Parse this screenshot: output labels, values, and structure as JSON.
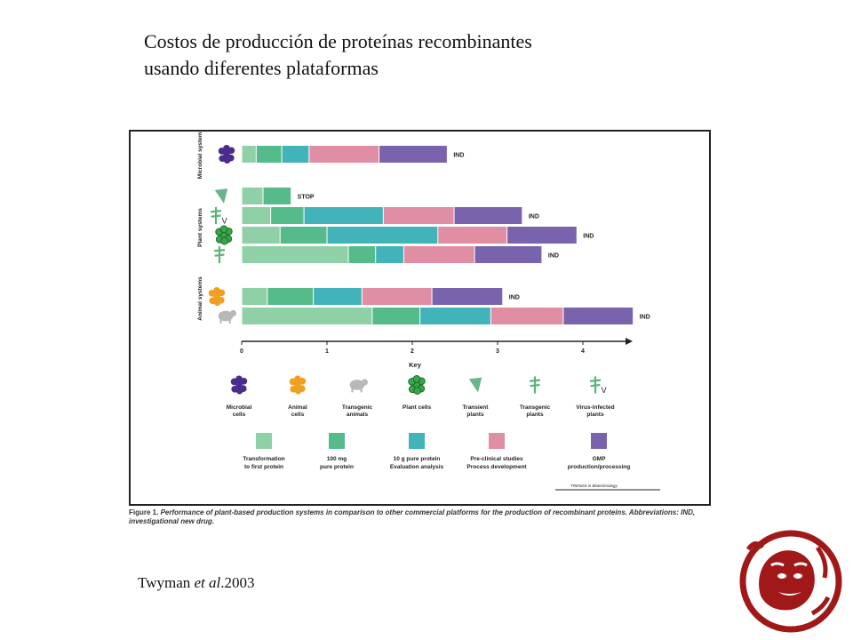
{
  "slide": {
    "title_line1": "Costos de producción de proteínas recombinantes",
    "title_line2": "usando diferentes plataformas",
    "citation_author": "Twyman ",
    "citation_etal": "et al",
    "citation_year": ".2003"
  },
  "figure": {
    "caption_label": "Figure 1.",
    "caption_text": "Performance of plant-based production systems in comparison to other commercial platforms for the production of recombinant proteins. Abbreviations: IND, investigational new drug.",
    "journal_credit": "TRENDS in Biotechnology"
  },
  "chart_data": {
    "type": "bar",
    "orientation": "horizontal-stacked",
    "xlabel": "Key",
    "xlim": [
      0,
      4.5
    ],
    "xticks": [
      "0",
      "1",
      "2",
      "3",
      "4"
    ],
    "groups": [
      {
        "label": "Microbial systems",
        "rows": [
          0
        ]
      },
      {
        "label": "Plant systems",
        "rows": [
          1,
          2,
          3,
          4
        ]
      },
      {
        "label": "Animal systems",
        "rows": [
          5,
          6
        ]
      }
    ],
    "stage_colors": [
      "#8fd0a7",
      "#55bb8b",
      "#42b3b8",
      "#e08ea3",
      "#7a63ad"
    ],
    "rows": [
      {
        "system": "Microbial cells",
        "icon": "microbial",
        "segments": [
          0.17,
          0.3,
          0.32,
          0.82,
          0.8
        ],
        "end_label": "IND"
      },
      {
        "system": "Transient plants",
        "icon": "transient",
        "segments": [
          0.25,
          0.33
        ],
        "end_label": "STOP"
      },
      {
        "system": "Virus-infected plants",
        "icon": "virus",
        "segments": [
          0.34,
          0.39,
          0.93,
          0.83,
          0.8
        ],
        "end_label": "IND"
      },
      {
        "system": "Plant cells",
        "icon": "plantcell",
        "segments": [
          0.45,
          0.55,
          1.3,
          0.81,
          0.82
        ],
        "end_label": "IND"
      },
      {
        "system": "Transgenic plants",
        "icon": "transgenic",
        "segments": [
          1.25,
          0.32,
          0.33,
          0.83,
          0.79
        ],
        "end_label": "IND"
      },
      {
        "system": "Animal cells",
        "icon": "animalcell",
        "segments": [
          0.3,
          0.54,
          0.57,
          0.82,
          0.83
        ],
        "end_label": "IND"
      },
      {
        "system": "Transgenic animals",
        "icon": "transanimal",
        "segments": [
          1.53,
          0.56,
          0.83,
          0.85,
          0.82
        ],
        "end_label": "IND"
      }
    ],
    "key_systems": [
      {
        "label_line1": "Microbial",
        "label_line2": "cells",
        "icon": "microbial"
      },
      {
        "label_line1": "Animal",
        "label_line2": "cells",
        "icon": "animalcell"
      },
      {
        "label_line1": "Transgenic",
        "label_line2": "animals",
        "icon": "transanimal"
      },
      {
        "label_line1": "Plant cells",
        "label_line2": "",
        "icon": "plantcell"
      },
      {
        "label_line1": "Transient",
        "label_line2": "plants",
        "icon": "transient"
      },
      {
        "label_line1": "Transgenic",
        "label_line2": "plants",
        "icon": "transgenic"
      },
      {
        "label_line1": "Virus-infected",
        "label_line2": "plants",
        "icon": "virus"
      }
    ],
    "key_stages": [
      {
        "label_line1": "Transformation",
        "label_line2": "to first protein"
      },
      {
        "label_line1": "100 mg",
        "label_line2": "pure protein"
      },
      {
        "label_line1": "10 g pure protein",
        "label_line2": "Evaluation analysis"
      },
      {
        "label_line1": "Pre-clinical studies",
        "label_line2": "Process development"
      },
      {
        "label_line1": "GMP",
        "label_line2": "production/processing"
      }
    ],
    "icon_colors": {
      "microbial": "#4b2b8c",
      "animalcell": "#f0a020",
      "transanimal": "#b8b8b8",
      "plantcell": "#3aa64a",
      "transient": "#67b58a",
      "transgenic": "#59b47a",
      "virus": "#59b47a"
    }
  }
}
